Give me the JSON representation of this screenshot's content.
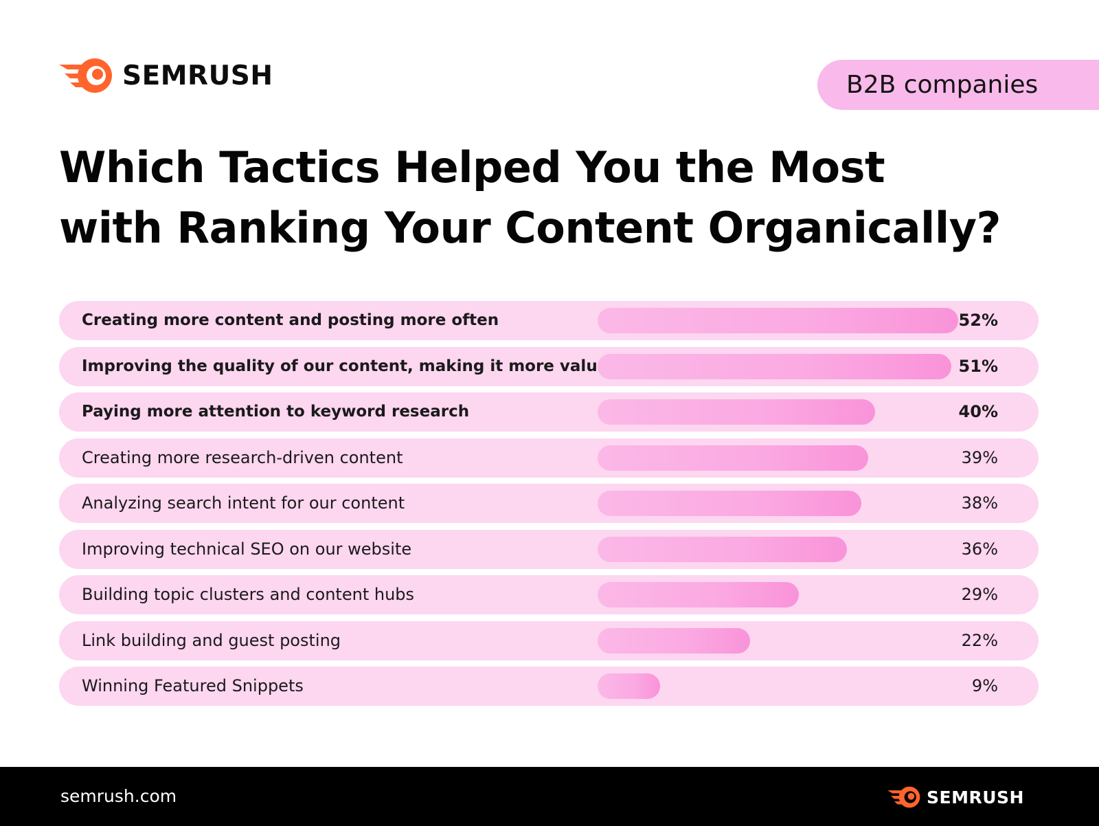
{
  "brand": {
    "name": "SEMRUSH",
    "accent_color": "#ff642d",
    "icon": "semrush-comet-icon"
  },
  "segment_label": "B2B companies",
  "chart_data": {
    "type": "bar",
    "orientation": "horizontal",
    "title_lines": [
      "Which Tactics Helped You the Most",
      "with Ranking Your Content Organically?"
    ],
    "xlabel": "",
    "ylabel": "",
    "xlim": [
      0,
      52
    ],
    "unit": "%",
    "grid": false,
    "legend": "none",
    "bar_color": "#f9a8e0",
    "row_background_color": "#fdd6f0",
    "categories": [
      "Creating more content and posting more often",
      "Improving the quality of our content, making it more valuable",
      "Paying more attention to keyword research",
      "Creating more research-driven content",
      "Analyzing search intent for our content",
      "Improving technical SEO on our website",
      "Building topic clusters and content hubs",
      "Link building and guest posting",
      "Winning Featured Snippets"
    ],
    "values": [
      52,
      51,
      40,
      39,
      38,
      36,
      29,
      22,
      9
    ],
    "value_labels": [
      "52%",
      "51%",
      "40%",
      "39%",
      "38%",
      "36%",
      "29%",
      "22%",
      "9%"
    ],
    "bold_rows": [
      true,
      true,
      true,
      false,
      false,
      false,
      false,
      false,
      false
    ]
  },
  "footer": {
    "url": "semrush.com",
    "brand_name": "SEMRUSH",
    "background_color": "#000000"
  }
}
